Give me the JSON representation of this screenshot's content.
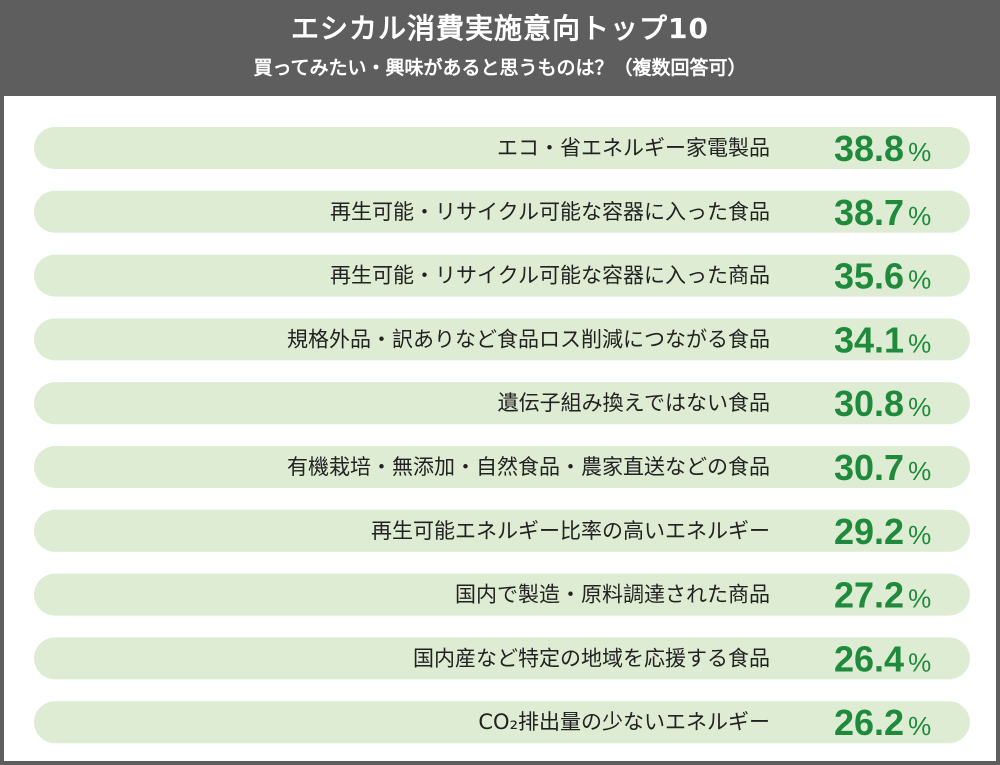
{
  "title": "エシカル消費実施意向トップ10",
  "subtitle": "買ってみたい・興味があると思うものは？（複数回答可）",
  "colors": {
    "header_bg": "#5e5e5e",
    "row_bg": "#ddecd2",
    "value_text": "#1f8a3c",
    "label_text": "#222222"
  },
  "chart_data": {
    "type": "table",
    "unit": "%",
    "categories": [
      "エコ・省エネルギー家電製品",
      "再生可能・リサイクル可能な容器に入った食品",
      "再生可能・リサイクル可能な容器に入った商品",
      "規格外品・訳ありなど食品ロス削減につながる食品",
      "遺伝子組み換えではない食品",
      "有機栽培・無添加・自然食品・農家直送などの食品",
      "再生可能エネルギー比率の高いエネルギー",
      "国内で製造・原料調達された商品",
      "国内産など特定の地域を応援する食品",
      "CO₂排出量の少ないエネルギー"
    ],
    "values": [
      "38.8",
      "38.7",
      "35.6",
      "34.1",
      "30.8",
      "30.7",
      "29.2",
      "27.2",
      "26.4",
      "26.2"
    ]
  }
}
